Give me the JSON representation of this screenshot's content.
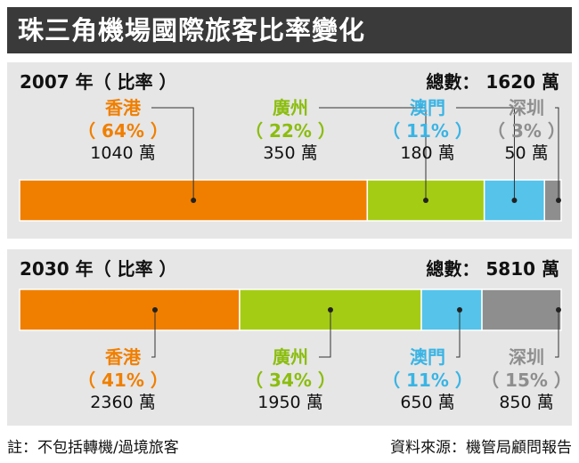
{
  "title": "珠三角機場國際旅客比率變化",
  "chart_data": [
    {
      "type": "bar",
      "stacked": true,
      "orientation": "horizontal",
      "year_label": "2007 年（ 比率 ）",
      "total_label": "總數： 1620 萬",
      "series": [
        {
          "name": "香港",
          "percent_label": "（ 64% ）",
          "value_label": "1040 萬",
          "value": 1040,
          "color": "#f07f00",
          "label_color": "#f07f00"
        },
        {
          "name": "廣州",
          "percent_label": "（ 22% ）",
          "value_label": "350 萬",
          "value": 350,
          "color": "#a5cc14",
          "label_color": "#8bbd0f"
        },
        {
          "name": "澳門",
          "percent_label": "（ 11% ）",
          "value_label": "180 萬",
          "value": 180,
          "color": "#55c3ea",
          "label_color": "#3ab4e4"
        },
        {
          "name": "深圳",
          "percent_label": "（ 3% ）",
          "value_label": "50 萬",
          "value": 50,
          "color": "#8e8e8e",
          "label_color": "#8e8e8e"
        }
      ]
    },
    {
      "type": "bar",
      "stacked": true,
      "orientation": "horizontal",
      "year_label": "2030 年（ 比率 ）",
      "total_label": "總數： 5810 萬",
      "series": [
        {
          "name": "香港",
          "percent_label": "（ 41% ）",
          "value_label": "2360 萬",
          "value": 2360,
          "color": "#f07f00",
          "label_color": "#f07f00"
        },
        {
          "name": "廣州",
          "percent_label": "（ 34% ）",
          "value_label": "1950 萬",
          "value": 1950,
          "color": "#a5cc14",
          "label_color": "#8bbd0f"
        },
        {
          "name": "澳門",
          "percent_label": "（ 11% ）",
          "value_label": "650 萬",
          "value": 650,
          "color": "#55c3ea",
          "label_color": "#3ab4e4"
        },
        {
          "name": "深圳",
          "percent_label": "（ 15% ）",
          "value_label": "850 萬",
          "value": 850,
          "color": "#8e8e8e",
          "label_color": "#8e8e8e"
        }
      ]
    }
  ],
  "footer": {
    "note": "註：不包括轉機/過境旅客",
    "source": "資料來源：機管局顧問報告"
  }
}
